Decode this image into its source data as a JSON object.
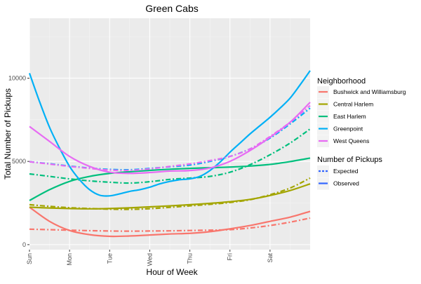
{
  "chart_data": {
    "type": "line",
    "title": "Green Cabs",
    "xlabel": "Hour of Week",
    "ylabel": "Total Number of Pickups",
    "xlim": [
      0,
      168
    ],
    "ylim": [
      -300,
      13600
    ],
    "x_ticks": [
      {
        "label": "Sun",
        "value": 0
      },
      {
        "label": "Mon",
        "value": 24
      },
      {
        "label": "Tue",
        "value": 48
      },
      {
        "label": "Wed",
        "value": 72
      },
      {
        "label": "Thu",
        "value": 96
      },
      {
        "label": "Fri",
        "value": 120
      },
      {
        "label": "Sat",
        "value": 144
      }
    ],
    "y_ticks": [
      0,
      5000,
      10000
    ],
    "grid": true,
    "legend_neighborhood": {
      "title": "Neighborhood",
      "position": "right",
      "entries": [
        {
          "label": "Bushwick and Williamsburg",
          "color": "#F8766D"
        },
        {
          "label": "Central Harlem",
          "color": "#A3A500"
        },
        {
          "label": "East Harlem",
          "color": "#00BF7D"
        },
        {
          "label": "Greenpoint",
          "color": "#00B0F6"
        },
        {
          "label": "West Queens",
          "color": "#E76BF3"
        }
      ]
    },
    "legend_pickups": {
      "title": "Number of Pickups",
      "position": "right",
      "entries": [
        {
          "label": "Expected",
          "style": "dashed"
        },
        {
          "label": "Observed",
          "style": "solid"
        }
      ]
    },
    "series": [
      {
        "name": "Bushwick and Williamsburg",
        "color": "#F8766D",
        "style": "solid",
        "points": [
          [
            0,
            2250
          ],
          [
            12,
            1400
          ],
          [
            24,
            850
          ],
          [
            36,
            600
          ],
          [
            48,
            500
          ],
          [
            60,
            520
          ],
          [
            72,
            580
          ],
          [
            84,
            640
          ],
          [
            96,
            680
          ],
          [
            108,
            780
          ],
          [
            120,
            950
          ],
          [
            132,
            1150
          ],
          [
            144,
            1400
          ],
          [
            156,
            1650
          ],
          [
            168,
            2000
          ]
        ]
      },
      {
        "name": "Bushwick and Williamsburg",
        "color": "#F8766D",
        "style": "dashed",
        "points": [
          [
            0,
            930
          ],
          [
            12,
            900
          ],
          [
            24,
            870
          ],
          [
            36,
            840
          ],
          [
            48,
            820
          ],
          [
            60,
            810
          ],
          [
            72,
            820
          ],
          [
            84,
            830
          ],
          [
            96,
            850
          ],
          [
            108,
            870
          ],
          [
            120,
            900
          ],
          [
            132,
            1000
          ],
          [
            144,
            1150
          ],
          [
            156,
            1350
          ],
          [
            168,
            1600
          ]
        ]
      },
      {
        "name": "Central Harlem",
        "color": "#A3A500",
        "style": "solid",
        "points": [
          [
            0,
            2250
          ],
          [
            12,
            2200
          ],
          [
            24,
            2170
          ],
          [
            36,
            2150
          ],
          [
            48,
            2170
          ],
          [
            60,
            2210
          ],
          [
            72,
            2270
          ],
          [
            84,
            2330
          ],
          [
            96,
            2400
          ],
          [
            108,
            2480
          ],
          [
            120,
            2580
          ],
          [
            132,
            2720
          ],
          [
            144,
            2950
          ],
          [
            156,
            3250
          ],
          [
            168,
            3650
          ]
        ]
      },
      {
        "name": "Central Harlem",
        "color": "#A3A500",
        "style": "dashed",
        "points": [
          [
            0,
            2400
          ],
          [
            12,
            2300
          ],
          [
            24,
            2220
          ],
          [
            36,
            2170
          ],
          [
            48,
            2130
          ],
          [
            60,
            2120
          ],
          [
            72,
            2160
          ],
          [
            84,
            2240
          ],
          [
            96,
            2330
          ],
          [
            108,
            2420
          ],
          [
            120,
            2530
          ],
          [
            132,
            2700
          ],
          [
            144,
            3000
          ],
          [
            156,
            3400
          ],
          [
            168,
            4000
          ]
        ]
      },
      {
        "name": "East Harlem",
        "color": "#00BF7D",
        "style": "solid",
        "points": [
          [
            0,
            2650
          ],
          [
            12,
            3300
          ],
          [
            24,
            3800
          ],
          [
            36,
            4100
          ],
          [
            48,
            4280
          ],
          [
            60,
            4380
          ],
          [
            72,
            4460
          ],
          [
            84,
            4530
          ],
          [
            96,
            4580
          ],
          [
            108,
            4620
          ],
          [
            120,
            4660
          ],
          [
            132,
            4720
          ],
          [
            144,
            4820
          ],
          [
            156,
            4990
          ],
          [
            168,
            5200
          ]
        ]
      },
      {
        "name": "East Harlem",
        "color": "#00BF7D",
        "style": "dashed",
        "points": [
          [
            0,
            4250
          ],
          [
            12,
            4100
          ],
          [
            24,
            3950
          ],
          [
            36,
            3830
          ],
          [
            48,
            3750
          ],
          [
            60,
            3700
          ],
          [
            72,
            3780
          ],
          [
            84,
            3920
          ],
          [
            96,
            4000
          ],
          [
            108,
            4100
          ],
          [
            120,
            4350
          ],
          [
            132,
            4800
          ],
          [
            144,
            5400
          ],
          [
            156,
            6100
          ],
          [
            168,
            6950
          ]
        ]
      },
      {
        "name": "Greenpoint",
        "color": "#00B0F6",
        "style": "solid",
        "points": [
          [
            0,
            10300
          ],
          [
            6,
            8600
          ],
          [
            12,
            7050
          ],
          [
            18,
            5800
          ],
          [
            24,
            4700
          ],
          [
            30,
            3900
          ],
          [
            36,
            3300
          ],
          [
            42,
            2970
          ],
          [
            48,
            2930
          ],
          [
            54,
            3050
          ],
          [
            60,
            3200
          ],
          [
            66,
            3300
          ],
          [
            72,
            3450
          ],
          [
            78,
            3650
          ],
          [
            84,
            3800
          ],
          [
            90,
            3900
          ],
          [
            96,
            3950
          ],
          [
            102,
            4100
          ],
          [
            108,
            4450
          ],
          [
            114,
            4950
          ],
          [
            120,
            5550
          ],
          [
            126,
            6100
          ],
          [
            132,
            6650
          ],
          [
            138,
            7150
          ],
          [
            144,
            7650
          ],
          [
            150,
            8200
          ],
          [
            156,
            8800
          ],
          [
            162,
            9600
          ],
          [
            168,
            10450
          ]
        ]
      },
      {
        "name": "Greenpoint",
        "color": "#00B0F6",
        "style": "dashed",
        "points": [
          [
            0,
            4980
          ],
          [
            12,
            4860
          ],
          [
            24,
            4720
          ],
          [
            36,
            4600
          ],
          [
            48,
            4520
          ],
          [
            60,
            4500
          ],
          [
            72,
            4580
          ],
          [
            84,
            4680
          ],
          [
            96,
            4780
          ],
          [
            108,
            5000
          ],
          [
            120,
            5300
          ],
          [
            132,
            5750
          ],
          [
            144,
            6400
          ],
          [
            156,
            7250
          ],
          [
            168,
            8200
          ]
        ]
      },
      {
        "name": "West Queens",
        "color": "#E76BF3",
        "style": "solid",
        "points": [
          [
            0,
            7100
          ],
          [
            12,
            6200
          ],
          [
            24,
            5300
          ],
          [
            36,
            4700
          ],
          [
            48,
            4350
          ],
          [
            60,
            4280
          ],
          [
            72,
            4330
          ],
          [
            84,
            4420
          ],
          [
            96,
            4450
          ],
          [
            108,
            4600
          ],
          [
            120,
            5000
          ],
          [
            132,
            5650
          ],
          [
            144,
            6450
          ],
          [
            156,
            7350
          ],
          [
            168,
            8550
          ]
        ]
      },
      {
        "name": "West Queens",
        "color": "#E76BF3",
        "style": "dashed",
        "points": [
          [
            0,
            4980
          ],
          [
            12,
            4840
          ],
          [
            24,
            4700
          ],
          [
            36,
            4580
          ],
          [
            48,
            4480
          ],
          [
            60,
            4460
          ],
          [
            72,
            4550
          ],
          [
            84,
            4700
          ],
          [
            96,
            4850
          ],
          [
            108,
            5050
          ],
          [
            120,
            5300
          ],
          [
            132,
            5750
          ],
          [
            144,
            6500
          ],
          [
            156,
            7350
          ],
          [
            168,
            8350
          ]
        ]
      }
    ]
  }
}
